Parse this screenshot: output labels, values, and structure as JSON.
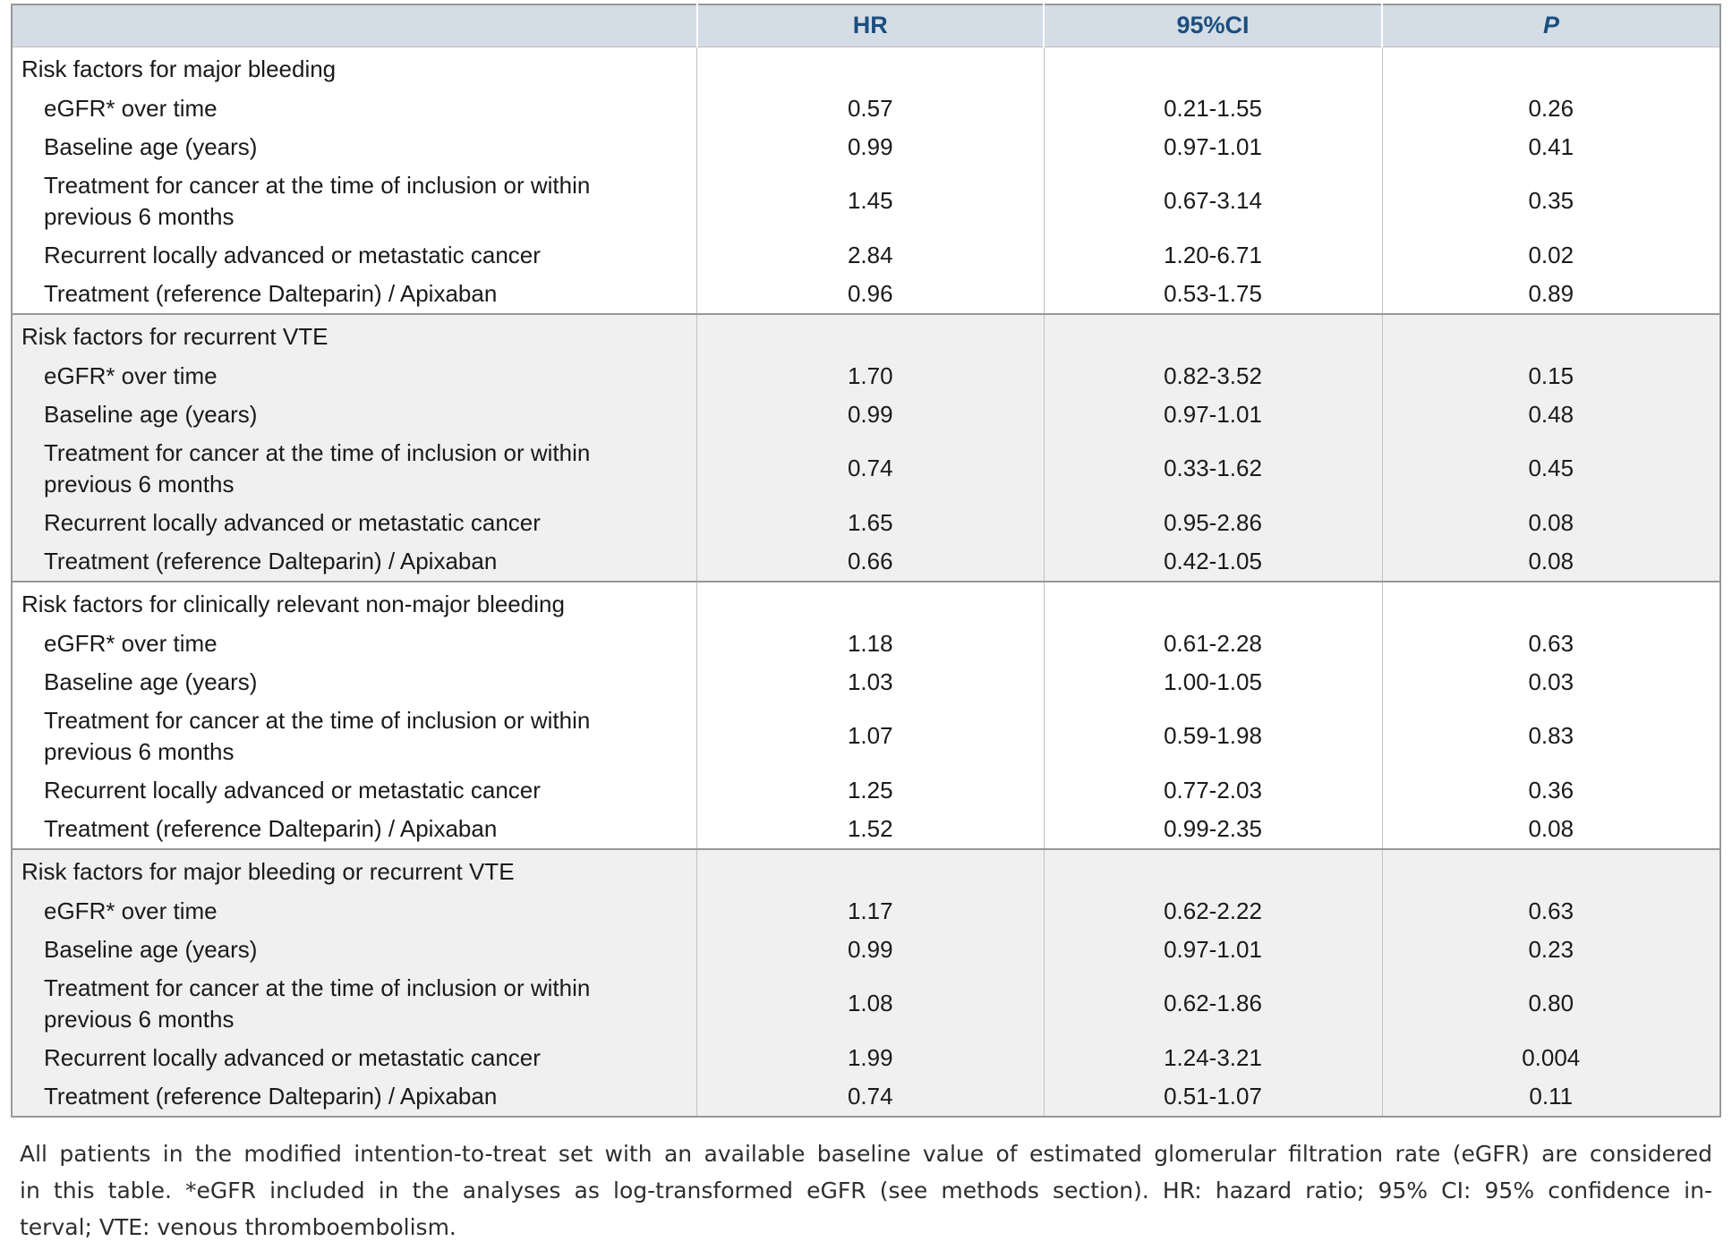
{
  "colors": {
    "header_bg": "#D4DDE6",
    "header_text": "#1C4E7E",
    "shaded_section_bg": "#F0F0F0",
    "table_border": "#989898",
    "body_text": "#1A1A1A"
  },
  "table": {
    "columns": {
      "hr": "HR",
      "ci": "95%CI",
      "p": "P"
    },
    "sections": [
      {
        "title": "Risk factors for major bleeding",
        "shaded": false,
        "rows": [
          {
            "label": "eGFR* over time",
            "hr": "0.57",
            "ci": "0.21-1.55",
            "p": "0.26"
          },
          {
            "label": "Baseline age (years)",
            "hr": "0.99",
            "ci": "0.97-1.01",
            "p": "0.41"
          },
          {
            "label": "Treatment for cancer at the time of inclusion or within previous 6 months",
            "hr": "1.45",
            "ci": "0.67-3.14",
            "p": "0.35"
          },
          {
            "label": "Recurrent locally advanced or metastatic cancer",
            "hr": "2.84",
            "ci": "1.20-6.71",
            "p": "0.02"
          },
          {
            "label": "Treatment (reference Dalteparin) / Apixaban",
            "hr": "0.96",
            "ci": "0.53-1.75",
            "p": "0.89"
          }
        ]
      },
      {
        "title": "Risk factors for recurrent VTE",
        "shaded": true,
        "rows": [
          {
            "label": "eGFR* over time",
            "hr": "1.70",
            "ci": "0.82-3.52",
            "p": "0.15"
          },
          {
            "label": "Baseline age (years)",
            "hr": "0.99",
            "ci": "0.97-1.01",
            "p": "0.48"
          },
          {
            "label": "Treatment for cancer at the time of inclusion or within previous 6 months",
            "hr": "0.74",
            "ci": "0.33-1.62",
            "p": "0.45"
          },
          {
            "label": "Recurrent locally advanced or metastatic cancer",
            "hr": "1.65",
            "ci": "0.95-2.86",
            "p": "0.08"
          },
          {
            "label": "Treatment (reference Dalteparin) / Apixaban",
            "hr": "0.66",
            "ci": "0.42-1.05",
            "p": "0.08"
          }
        ]
      },
      {
        "title": "Risk factors for clinically relevant non-major bleeding",
        "shaded": false,
        "rows": [
          {
            "label": "eGFR* over time",
            "hr": "1.18",
            "ci": "0.61-2.28",
            "p": "0.63"
          },
          {
            "label": "Baseline age (years)",
            "hr": "1.03",
            "ci": "1.00-1.05",
            "p": "0.03"
          },
          {
            "label": "Treatment for cancer at the time of inclusion or within previous 6 months",
            "hr": "1.07",
            "ci": "0.59-1.98",
            "p": "0.83"
          },
          {
            "label": "Recurrent locally advanced or metastatic cancer",
            "hr": "1.25",
            "ci": "0.77-2.03",
            "p": "0.36"
          },
          {
            "label": "Treatment (reference Dalteparin) / Apixaban",
            "hr": "1.52",
            "ci": "0.99-2.35",
            "p": "0.08"
          }
        ]
      },
      {
        "title": "Risk factors for major bleeding or recurrent VTE",
        "shaded": true,
        "rows": [
          {
            "label": "eGFR* over time",
            "hr": "1.17",
            "ci": "0.62-2.22",
            "p": "0.63"
          },
          {
            "label": "Baseline age (years)",
            "hr": "0.99",
            "ci": "0.97-1.01",
            "p": "0.23"
          },
          {
            "label": "Treatment for cancer at the time of inclusion or within previous 6 months",
            "hr": "1.08",
            "ci": "0.62-1.86",
            "p": "0.80"
          },
          {
            "label": "Recurrent locally advanced or metastatic cancer",
            "hr": "1.99",
            "ci": "1.24-3.21",
            "p": "0.004"
          },
          {
            "label": "Treatment (reference Dalteparin) / Apixaban",
            "hr": "0.74",
            "ci": "0.51-1.07",
            "p": "0.11"
          }
        ]
      }
    ]
  },
  "footnote": {
    "lines": [
      "All patients in the modified intention-to-treat set with an available baseline value of estimated glomerular filtration rate (eGFR) are considered",
      "in this table. *eGFR included in the analyses as log-transformed eGFR (see methods section). HR: hazard ratio; 95% CI: 95% confidence in-",
      "terval; VTE: venous thromboembolism."
    ]
  }
}
